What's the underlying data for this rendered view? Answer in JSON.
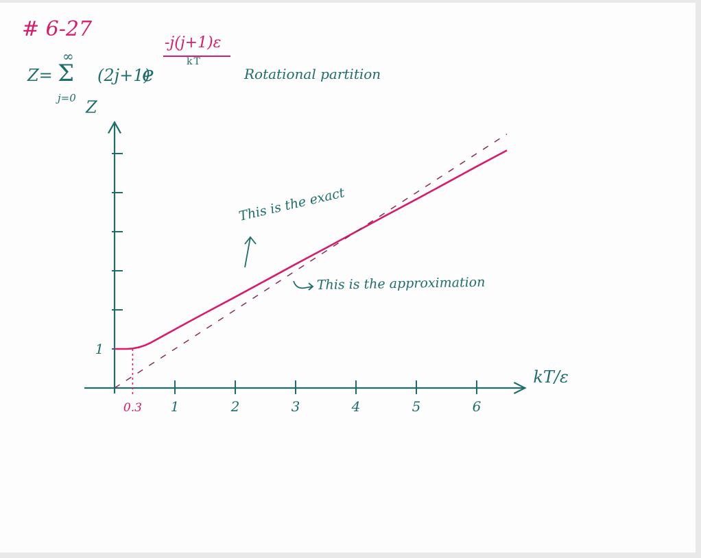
{
  "header": {
    "problem_number": "# 6-27",
    "equation": {
      "lhs": "Z=",
      "sum_symbol": "Σ",
      "sum_upper": "∞",
      "sum_lower": "j=0",
      "degeneracy": "(2j+1)",
      "exp_base": "e",
      "exponent_numerator": "-j(j+1)ε",
      "exponent_denominator": "kT"
    },
    "partition_label": "Rotational partition"
  },
  "colors": {
    "ink": "#1f6d6a",
    "exact_curve": "#d81b6b",
    "approximation_curve": "#8a2a5a",
    "highlight": "#d81b6b"
  },
  "chart_data": {
    "type": "line",
    "x": [
      0,
      0.1,
      0.2,
      0.3,
      0.4,
      0.5,
      0.6,
      0.8,
      1,
      1.25,
      1.5,
      2,
      2.5,
      3,
      3.5,
      4,
      4.5,
      5,
      5.5,
      6,
      6.5
    ],
    "series": [
      {
        "key": "exact",
        "values": [
          1,
          1,
          1,
          1.01,
          1.04,
          1.09,
          1.16,
          1.33,
          1.5,
          1.71,
          1.92,
          2.33,
          2.75,
          3.17,
          3.58,
          4,
          4.42,
          4.83,
          5.25,
          5.67,
          6.08
        ],
        "style": "solid",
        "color": "#d81b6b"
      },
      {
        "key": "approximation",
        "values": [
          0,
          0.1,
          0.2,
          0.3,
          0.4,
          0.5,
          0.6,
          0.8,
          1,
          1.25,
          1.5,
          2,
          2.5,
          3,
          3.5,
          4,
          4.5,
          5,
          5.5,
          6,
          6.5
        ],
        "style": "dashed",
        "color": "#8a2a5a"
      }
    ],
    "xticks": [
      {
        "value": 1,
        "label": "1"
      },
      {
        "value": 2,
        "label": "2"
      },
      {
        "value": 3,
        "label": "3"
      },
      {
        "value": 4,
        "label": "4"
      },
      {
        "value": 5,
        "label": "5"
      },
      {
        "value": 6,
        "label": "6"
      }
    ],
    "x_marker": {
      "value": 0.3,
      "label": "0.3",
      "color": "#d81b6b"
    },
    "yticks": [
      {
        "value": 1,
        "label": "1"
      },
      {
        "value": 2,
        "label": ""
      },
      {
        "value": 3,
        "label": ""
      },
      {
        "value": 4,
        "label": ""
      },
      {
        "value": 5,
        "label": ""
      },
      {
        "value": 6,
        "label": ""
      }
    ],
    "xlabel": "kT/ε",
    "ylabel": "Z",
    "xlim": [
      0,
      6.8
    ],
    "ylim": [
      0,
      6.8
    ],
    "grid": false,
    "annotations": [
      {
        "target": "exact",
        "text": "This is the exact"
      },
      {
        "target": "approximation",
        "text": "This is the approximation"
      }
    ]
  }
}
